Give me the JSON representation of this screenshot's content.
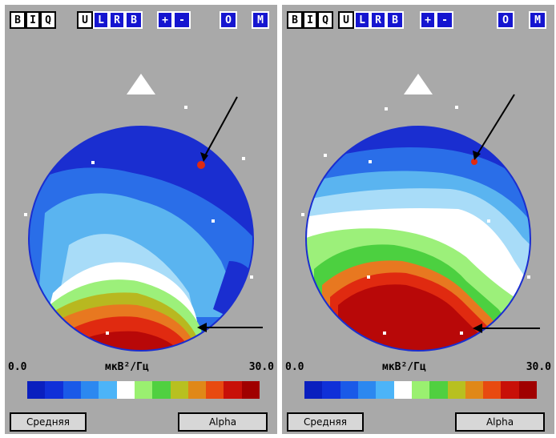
{
  "panels": [
    {
      "toolbar": {
        "b1": "B",
        "b2": "I",
        "b3": "Q",
        "b4": "U",
        "b5": "L",
        "b6": "R",
        "b7": "B",
        "plus": "+",
        "minus": "-",
        "o": "O",
        "m": "M"
      },
      "scale": {
        "min": "0.0",
        "unit": "мкВ²/Гц",
        "max": "30.0"
      },
      "mode_button": "Средняя",
      "band_button": "Alpha"
    },
    {
      "toolbar": {
        "b1": "B",
        "b2": "I",
        "b3": "Q",
        "b4": "U",
        "b5": "L",
        "b6": "R",
        "b7": "B",
        "plus": "+",
        "minus": "-",
        "o": "O",
        "m": "M"
      },
      "scale": {
        "min": "0.0",
        "unit": "мкВ²/Гц",
        "max": "30.0"
      },
      "mode_button": "Средняя",
      "band_button": "Alpha"
    }
  ],
  "colorbar_colors": [
    "#0a1fbf",
    "#1030d8",
    "#1a5ae8",
    "#2c88f0",
    "#4cb4f8",
    "#ffffff",
    "#9af070",
    "#50d040",
    "#b8c020",
    "#e08818",
    "#e84a10",
    "#c81008",
    "#a00000"
  ],
  "map_colors": {
    "dark_blue": "#1a2ed0",
    "blue": "#2a6ee8",
    "light_blue": "#5ab4f0",
    "pale_blue": "#a8dcf8",
    "white": "#ffffff",
    "light_green": "#9cf07a",
    "green": "#4cd040",
    "olive": "#b8b820",
    "orange": "#e87820",
    "red": "#e02a10",
    "dark_red": "#b80808"
  }
}
